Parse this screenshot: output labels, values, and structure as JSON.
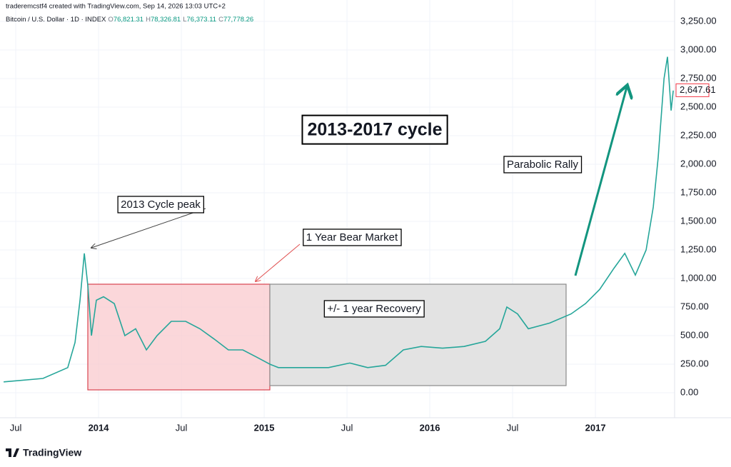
{
  "header": {
    "credit": "traderemcstf4 created with TradingView.com, Sep 14, 2026 13:03 UTC+2",
    "symbol": "Bitcoin / U.S. Dollar · 1D · INDEX",
    "ohlc": [
      {
        "label": "O",
        "value": "76,821.31"
      },
      {
        "label": "H",
        "value": "78,326.81"
      },
      {
        "label": "L",
        "value": "76,373.11"
      },
      {
        "label": "C",
        "value": "77,778.26"
      }
    ]
  },
  "chart_data": {
    "type": "line",
    "title": "2013-2017 cycle",
    "annotations": [
      "2013 Cycle peak",
      "1 Year Bear Market",
      "+/- 1 year Recovery",
      "Parabolic Rally"
    ],
    "x": [
      2013.427,
      2013.664,
      2013.814,
      2013.858,
      2013.888,
      2013.914,
      2013.935,
      2013.957,
      2013.987,
      2014.03,
      2014.095,
      2014.159,
      2014.224,
      2014.289,
      2014.353,
      2014.439,
      2014.526,
      2014.612,
      2014.698,
      2014.784,
      2014.871,
      2014.957,
      2015.034,
      2015.086,
      2015.215,
      2015.388,
      2015.517,
      2015.625,
      2015.733,
      2015.84,
      2015.948,
      2016.077,
      2016.207,
      2016.336,
      2016.422,
      2016.465,
      2016.53,
      2016.595,
      2016.724,
      2016.853,
      2016.94,
      2017.026,
      2017.112,
      2017.177,
      2017.241,
      2017.306,
      2017.349,
      2017.379,
      2017.414,
      2017.435,
      2017.457,
      2017.47
    ],
    "series": [
      {
        "name": "Bitcoin / U.S. Dollar",
        "color": "#26a69a",
        "values": [
          95,
          125,
          220,
          440,
          810,
          1220,
          940,
          500,
          810,
          840,
          780,
          500,
          560,
          375,
          500,
          625,
          625,
          560,
          470,
          375,
          375,
          310,
          250,
          220,
          220,
          220,
          260,
          220,
          240,
          375,
          405,
          390,
          405,
          450,
          560,
          750,
          690,
          560,
          610,
          690,
          780,
          905,
          1090,
          1220,
          1030,
          1250,
          1625,
          2060,
          2750,
          2940,
          2470,
          2645
        ]
      }
    ],
    "last_price": {
      "value": 2647.61,
      "label": "2,647.61"
    },
    "xlim": [
      2013.405,
      2017.478
    ],
    "xticks": [
      {
        "value": 2013.5,
        "label": "Jul"
      },
      2014,
      {
        "value": 2014.5,
        "label": "Jul"
      },
      2015,
      {
        "value": 2015.5,
        "label": "Jul"
      },
      2016,
      {
        "value": 2016.5,
        "label": "Jul"
      },
      2017
    ],
    "ylim": [
      -218.75,
      3437.5
    ],
    "yticks": [
      {
        "value": 0,
        "label": "0.00"
      },
      {
        "value": 250,
        "label": "250.00"
      },
      {
        "value": 500,
        "label": "500.00"
      },
      {
        "value": 750,
        "label": "750.00"
      },
      {
        "value": 1000,
        "label": "1,000.00"
      },
      {
        "value": 1250,
        "label": "1,250.00"
      },
      {
        "value": 1500,
        "label": "1,500.00"
      },
      {
        "value": 1750,
        "label": "1,750.00"
      },
      {
        "value": 2000,
        "label": "2,000.00"
      },
      {
        "value": 2250,
        "label": "2,250.00"
      },
      {
        "value": 2500,
        "label": "2,500.00"
      },
      {
        "value": 2750,
        "label": "2,750.00"
      },
      {
        "value": 3000,
        "label": "3,000.00"
      },
      {
        "value": 3250,
        "label": "3,250.00"
      }
    ],
    "grid": true
  },
  "footer": {
    "brand": "TradingView"
  }
}
